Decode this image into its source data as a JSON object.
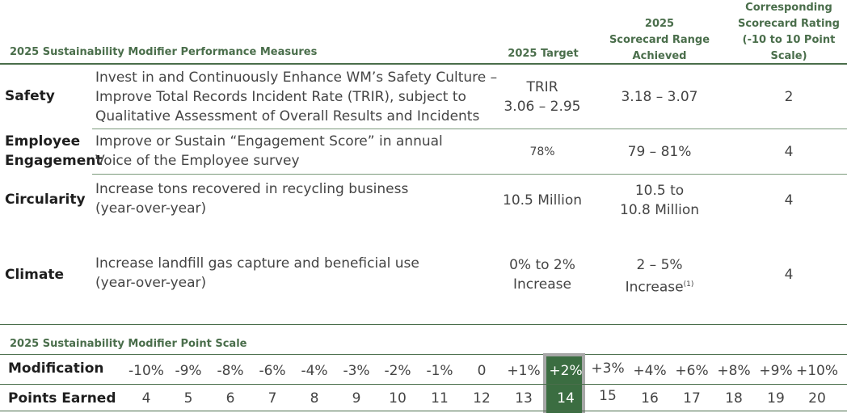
{
  "header": {
    "measures_title": "2025 Sustainability Modifier Performance Measures",
    "target_title": "2025 Target",
    "range_title_1": "2025",
    "range_title_2": "Scorecard Range",
    "range_title_3": "Achieved",
    "rating_title_1": "Corresponding",
    "rating_title_2": "Scorecard Rating",
    "rating_title_3": "(-10 to 10 Point",
    "rating_title_4": "Scale)"
  },
  "rows": [
    {
      "label": "Safety",
      "desc_lines": [
        "Invest in and Continuously Enhance WM’s Safety Culture –",
        "Improve Total Records Incident Rate (TRIR), subject to",
        "Qualitative Assessment of Overall Results and Incidents"
      ],
      "target_lines": [
        "TRIR",
        "3.06 – 2.95"
      ],
      "range_lines": [
        "3.18 – 3.07"
      ],
      "rating": "2"
    },
    {
      "label_lines": [
        "Employee",
        "Engagement"
      ],
      "desc_lines": [
        "Improve or Sustain “Engagement Score” in annual",
        "Voice of the Employee survey"
      ],
      "target_lines": [
        "78%"
      ],
      "range_lines": [
        "79 – 81%"
      ],
      "rating": "4"
    },
    {
      "label": "Circularity",
      "desc_lines": [
        "Increase tons recovered in recycling business",
        "(year-over-year)"
      ],
      "target_lines": [
        "10.5 Million"
      ],
      "range_lines": [
        "10.5 to",
        "10.8 Million"
      ],
      "rating": "4"
    },
    {
      "label": "Climate",
      "desc_lines": [
        "Increase landfill gas capture and beneficial use",
        "(year-over-year)"
      ],
      "target_lines": [
        "0% to 2%",
        "Increase"
      ],
      "range_lines": [
        "2 – 5%",
        "Increase"
      ],
      "range_footnote": "(1)",
      "rating": "4"
    }
  ],
  "scale": {
    "title": "2025 Sustainability Modifier Point Scale",
    "modification_label": "Modification",
    "points_label": "Points Earned",
    "modifications": [
      "-10%",
      "-9%",
      "-8%",
      "-6%",
      "-4%",
      "-3%",
      "-2%",
      "-1%",
      "0",
      "+1%",
      "+2%",
      "+3%",
      "+4%",
      "+6%",
      "+8%",
      "+9%",
      "+10%"
    ],
    "points": [
      "4",
      "5",
      "6",
      "7",
      "8",
      "9",
      "10",
      "11",
      "12",
      "13",
      "14",
      "15",
      "16",
      "17",
      "18",
      "19",
      "20"
    ],
    "highlighted_index": 10
  },
  "colors": {
    "header_green": "#4a6e4b",
    "highlight_green": "#3b6d41",
    "highlight_border": "#a7a7a7"
  }
}
